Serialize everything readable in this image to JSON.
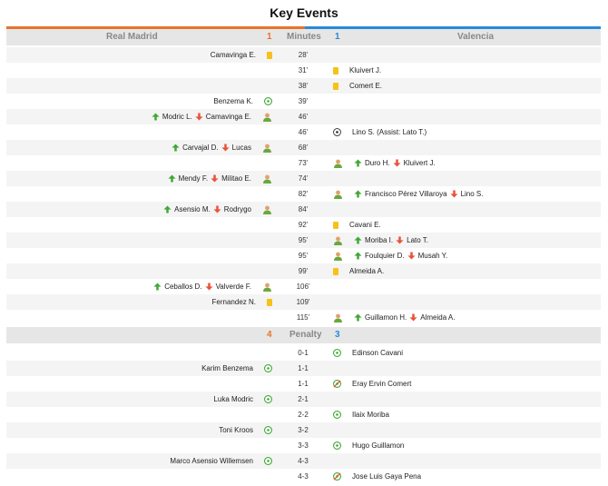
{
  "title": "Key Events",
  "header": {
    "home": "Real Madrid",
    "home_score": "1",
    "center": "Minutes",
    "away_score": "1",
    "away": "Valencia"
  },
  "penalty_header": {
    "home_score": "4",
    "center": "Penalty",
    "away_score": "3"
  },
  "colors": {
    "home": "#e8732b",
    "away": "#2a8ad9",
    "card": "#f6c21a",
    "up": "#3fa935",
    "down": "#e8533b"
  },
  "events": [
    {
      "min": "28'",
      "side": "home",
      "type": "yellow",
      "text": "Camavinga E."
    },
    {
      "min": "31'",
      "side": "away",
      "type": "yellow",
      "text": "Kluivert J."
    },
    {
      "min": "38'",
      "side": "away",
      "type": "yellow",
      "text": "Comert E."
    },
    {
      "min": "39'",
      "side": "home",
      "type": "goal",
      "text": "Benzema K."
    },
    {
      "min": "46'",
      "side": "home",
      "type": "sub",
      "in": "Modric L.",
      "out": "Camavinga E."
    },
    {
      "min": "46'",
      "side": "away",
      "type": "goal",
      "text": "Lino S. (Assist: Lato T.)"
    },
    {
      "min": "68'",
      "side": "home",
      "type": "sub",
      "in": "Carvajal D.",
      "out": "Lucas"
    },
    {
      "min": "73'",
      "side": "away",
      "type": "sub",
      "in": "Duro H.",
      "out": "Kluivert J."
    },
    {
      "min": "74'",
      "side": "home",
      "type": "sub",
      "in": "Mendy F.",
      "out": "Militao E."
    },
    {
      "min": "82'",
      "side": "away",
      "type": "sub",
      "in": "Francisco Pérez Villaroya",
      "out": "Lino S."
    },
    {
      "min": "84'",
      "side": "home",
      "type": "sub",
      "in": "Asensio M.",
      "out": "Rodrygo"
    },
    {
      "min": "92'",
      "side": "away",
      "type": "yellow",
      "text": "Cavani E."
    },
    {
      "min": "95'",
      "side": "away",
      "type": "sub",
      "in": "Moriba I.",
      "out": "Lato T."
    },
    {
      "min": "95'",
      "side": "away",
      "type": "sub",
      "in": "Foulquier D.",
      "out": "Musah Y."
    },
    {
      "min": "99'",
      "side": "away",
      "type": "yellow",
      "text": "Almeida A."
    },
    {
      "min": "106'",
      "side": "home",
      "type": "sub",
      "in": "Ceballos D.",
      "out": "Valverde F."
    },
    {
      "min": "109'",
      "side": "home",
      "type": "yellow",
      "text": "Fernandez N."
    },
    {
      "min": "115'",
      "side": "away",
      "type": "sub",
      "in": "Guillamon H.",
      "out": "Almeida A."
    }
  ],
  "penalties": [
    {
      "score": "0-1",
      "side": "away",
      "scored": true,
      "text": "Edinson Cavani"
    },
    {
      "score": "1-1",
      "side": "home",
      "scored": true,
      "text": "Karim Benzema"
    },
    {
      "score": "1-1",
      "side": "away",
      "scored": false,
      "text": "Eray Ervin Comert"
    },
    {
      "score": "2-1",
      "side": "home",
      "scored": true,
      "text": "Luka Modric"
    },
    {
      "score": "2-2",
      "side": "away",
      "scored": true,
      "text": "Ilaix Moriba"
    },
    {
      "score": "3-2",
      "side": "home",
      "scored": true,
      "text": "Toni Kroos"
    },
    {
      "score": "3-3",
      "side": "away",
      "scored": true,
      "text": "Hugo Guillamon"
    },
    {
      "score": "4-3",
      "side": "home",
      "scored": true,
      "text": "Marco Asensio Willemsen"
    },
    {
      "score": "4-3",
      "side": "away",
      "scored": false,
      "text": "Jose Luis Gaya Pena"
    }
  ]
}
